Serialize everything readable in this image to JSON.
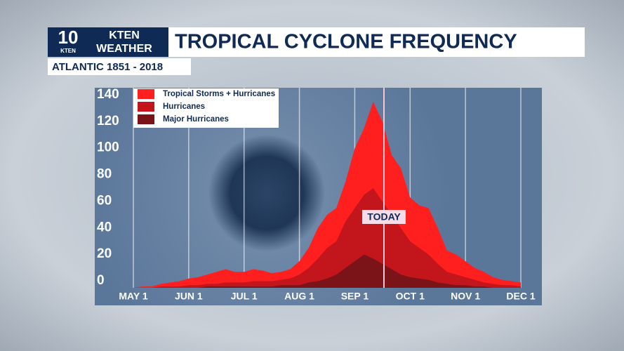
{
  "header": {
    "logo_number": "10",
    "logo_small": "KTEN",
    "station": "KTEN",
    "brand": "WEATHER"
  },
  "chart_data": {
    "type": "area",
    "title": "TROPICAL CYCLONE FREQUENCY",
    "subtitle": "ATLANTIC 1851 - 2018",
    "annotation": "TODAY",
    "categories": [
      "MAY 1",
      null,
      null,
      null,
      null,
      null,
      "JUN 1",
      null,
      null,
      null,
      null,
      null,
      "JUL 1",
      null,
      null,
      null,
      null,
      null,
      "AUG 1",
      null,
      null,
      null,
      null,
      null,
      "SEP 1",
      null,
      null,
      null,
      null,
      null,
      "OCT 1",
      null,
      null,
      null,
      null,
      null,
      "NOV 1",
      null,
      null,
      null,
      null,
      null,
      "DEC 1"
    ],
    "series": [
      {
        "name": "Tropical Storms + Hurricanes",
        "color": "#ff1f1f",
        "values": [
          0,
          1,
          1,
          3,
          4,
          5,
          7,
          8,
          10,
          12,
          14,
          12,
          12,
          14,
          13,
          11,
          12,
          14,
          20,
          30,
          45,
          55,
          60,
          80,
          105,
          120,
          140,
          125,
          100,
          90,
          68,
          62,
          60,
          45,
          28,
          25,
          20,
          15,
          12,
          8,
          6,
          5,
          4
        ]
      },
      {
        "name": "Hurricanes",
        "color": "#c2161c",
        "values": [
          0,
          0,
          0,
          1,
          1,
          1,
          2,
          2,
          3,
          3,
          4,
          4,
          4,
          5,
          5,
          5,
          6,
          7,
          10,
          15,
          22,
          30,
          35,
          50,
          60,
          70,
          75,
          65,
          55,
          45,
          35,
          30,
          25,
          18,
          12,
          10,
          8,
          6,
          4,
          3,
          2,
          2,
          1
        ]
      },
      {
        "name": "Major Hurricanes",
        "color": "#7a1419",
        "values": [
          0,
          0,
          0,
          0,
          0,
          0,
          0,
          0,
          1,
          1,
          1,
          1,
          1,
          1,
          1,
          1,
          2,
          2,
          2,
          4,
          5,
          7,
          10,
          15,
          20,
          25,
          22,
          18,
          14,
          10,
          8,
          7,
          6,
          4,
          3,
          2,
          2,
          1,
          1,
          0,
          0,
          0,
          0
        ]
      }
    ],
    "ylim": [
      0,
      140
    ],
    "yticks": [
      0,
      20,
      40,
      60,
      80,
      100,
      120,
      140
    ],
    "grid": true
  }
}
